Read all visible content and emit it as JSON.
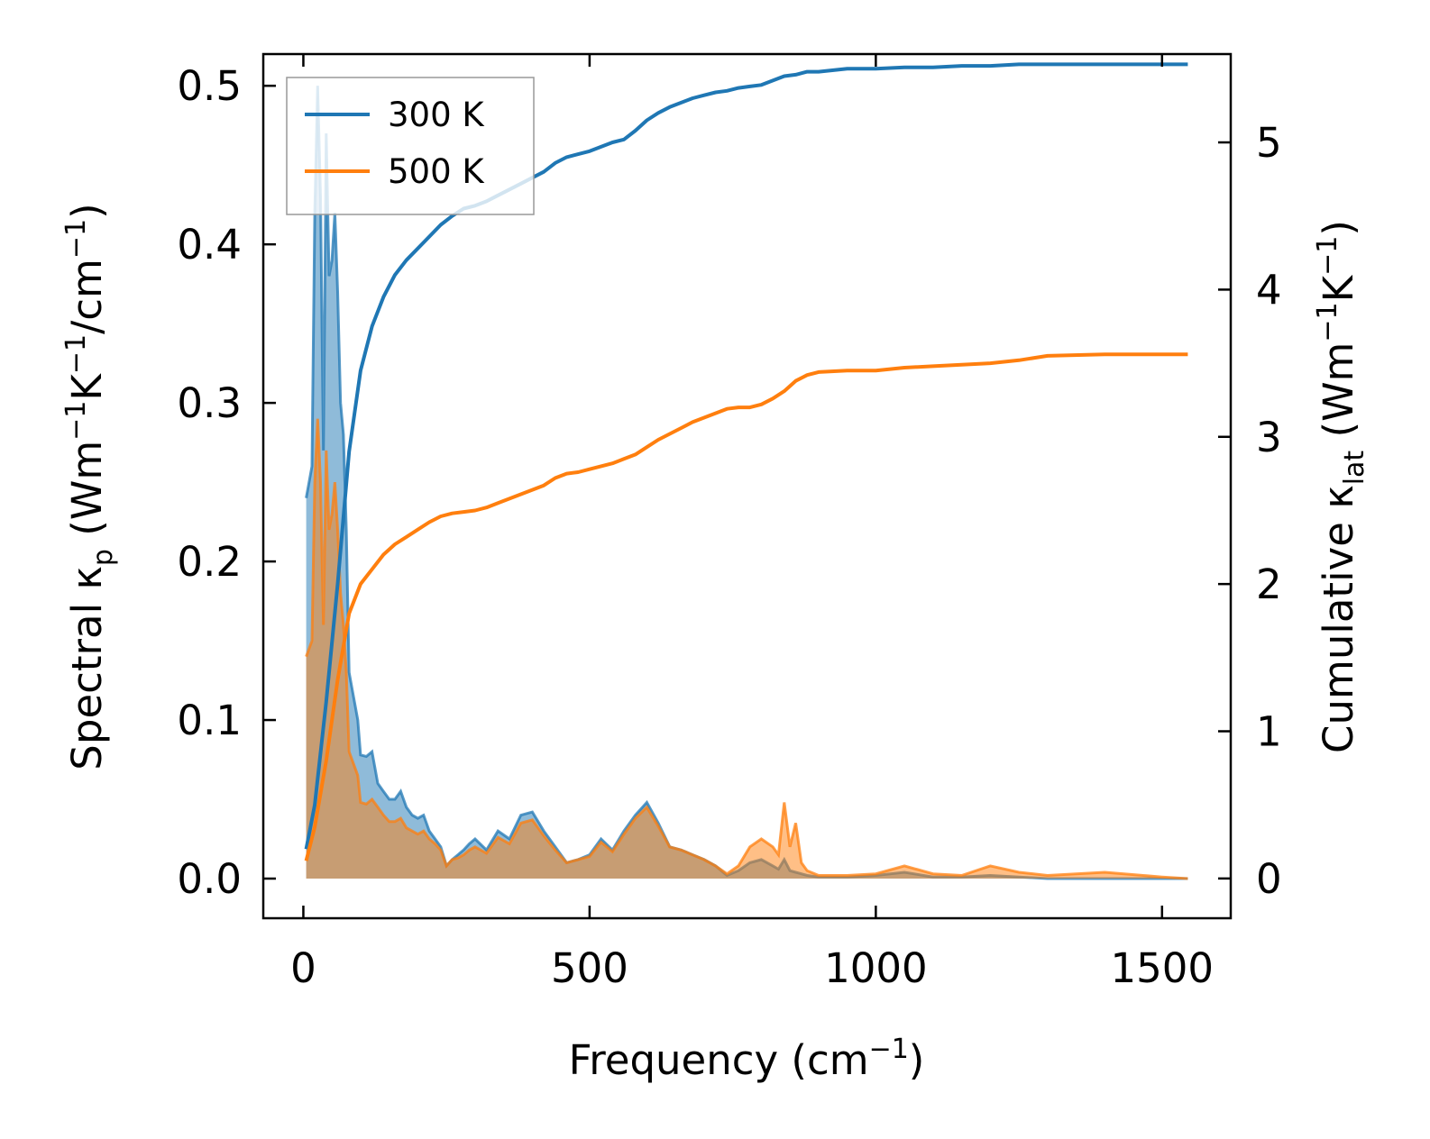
{
  "chart_data": {
    "type": "area",
    "xlabel": "Frequency (cm",
    "xlabel_sup": "−1",
    "xlabel_end": ")",
    "ylabel_left": {
      "pre": "Spectral κ",
      "sub": "p",
      "mid1": " (Wm",
      "sup1": "−1",
      "mid2": "K",
      "sup2": "−1",
      "mid3": "/cm",
      "sup3": "−1",
      "end": ")"
    },
    "ylabel_right": {
      "pre": "Cumulative κ",
      "sub": "lat",
      "mid1": " (Wm",
      "sup1": "−1",
      "mid2": "K",
      "sup2": "−1",
      "end": ")"
    },
    "xlim": [
      -70,
      1620
    ],
    "ylim_left": [
      -0.025,
      0.52
    ],
    "ylim_right": [
      -0.27,
      5.6
    ],
    "xticks": [
      0,
      500,
      1000,
      1500
    ],
    "yticks_left": [
      0.0,
      0.1,
      0.2,
      0.3,
      0.4,
      0.5
    ],
    "yticks_right": [
      0,
      1,
      2,
      3,
      4,
      5
    ],
    "legend_position": "upper-left",
    "colors": {
      "s300": "#1f77b4",
      "s500": "#ff7f0e"
    },
    "series": [
      {
        "name": "300 K",
        "spectral": {
          "x": [
            5,
            10,
            15,
            20,
            25,
            30,
            35,
            40,
            45,
            50,
            55,
            60,
            65,
            70,
            75,
            80,
            85,
            90,
            95,
            100,
            110,
            120,
            130,
            140,
            150,
            160,
            170,
            180,
            190,
            200,
            210,
            220,
            230,
            240,
            250,
            260,
            270,
            280,
            290,
            300,
            320,
            340,
            360,
            380,
            400,
            420,
            440,
            460,
            480,
            500,
            520,
            540,
            560,
            580,
            600,
            620,
            640,
            660,
            680,
            700,
            720,
            740,
            760,
            780,
            800,
            820,
            830,
            840,
            850,
            860,
            870,
            880,
            900,
            950,
            1000,
            1050,
            1100,
            1150,
            1200,
            1250,
            1300,
            1400,
            1500,
            1545
          ],
          "y": [
            0.24,
            0.25,
            0.26,
            0.42,
            0.5,
            0.43,
            0.27,
            0.47,
            0.38,
            0.39,
            0.42,
            0.37,
            0.3,
            0.28,
            0.22,
            0.13,
            0.12,
            0.11,
            0.1,
            0.078,
            0.077,
            0.08,
            0.06,
            0.055,
            0.05,
            0.05,
            0.055,
            0.045,
            0.04,
            0.038,
            0.04,
            0.03,
            0.025,
            0.02,
            0.008,
            0.012,
            0.015,
            0.018,
            0.022,
            0.025,
            0.018,
            0.03,
            0.025,
            0.04,
            0.042,
            0.03,
            0.02,
            0.01,
            0.012,
            0.015,
            0.025,
            0.018,
            0.03,
            0.04,
            0.048,
            0.035,
            0.02,
            0.018,
            0.015,
            0.012,
            0.008,
            0.002,
            0.005,
            0.01,
            0.012,
            0.008,
            0.006,
            0.012,
            0.005,
            0.004,
            0.003,
            0.002,
            0.001,
            0.001,
            0.002,
            0.004,
            0.001,
            0.001,
            0.002,
            0.001,
            0.0,
            0.0,
            0.0,
            0.0
          ]
        },
        "cumulative": {
          "x": [
            5,
            20,
            40,
            60,
            80,
            100,
            120,
            140,
            160,
            180,
            200,
            220,
            240,
            260,
            280,
            300,
            320,
            340,
            360,
            380,
            400,
            420,
            440,
            460,
            480,
            500,
            520,
            540,
            560,
            580,
            600,
            620,
            640,
            660,
            680,
            700,
            720,
            740,
            760,
            780,
            800,
            820,
            840,
            860,
            880,
            900,
            950,
            1000,
            1050,
            1100,
            1150,
            1200,
            1250,
            1300,
            1400,
            1500,
            1545
          ],
          "y": [
            0.2,
            0.5,
            1.2,
            2.0,
            2.9,
            3.45,
            3.75,
            3.95,
            4.1,
            4.2,
            4.28,
            4.36,
            4.44,
            4.5,
            4.55,
            4.57,
            4.6,
            4.64,
            4.68,
            4.72,
            4.76,
            4.8,
            4.86,
            4.9,
            4.92,
            4.94,
            4.97,
            5.0,
            5.02,
            5.08,
            5.15,
            5.2,
            5.24,
            5.27,
            5.3,
            5.32,
            5.34,
            5.35,
            5.37,
            5.38,
            5.39,
            5.42,
            5.45,
            5.46,
            5.48,
            5.48,
            5.5,
            5.5,
            5.51,
            5.51,
            5.52,
            5.52,
            5.53,
            5.53,
            5.53,
            5.53,
            5.53
          ]
        }
      },
      {
        "name": "500 K",
        "spectral": {
          "x": [
            5,
            10,
            15,
            20,
            25,
            30,
            35,
            40,
            45,
            50,
            55,
            60,
            65,
            70,
            75,
            80,
            85,
            90,
            95,
            100,
            110,
            120,
            130,
            140,
            150,
            160,
            170,
            180,
            190,
            200,
            210,
            220,
            230,
            240,
            250,
            260,
            270,
            280,
            290,
            300,
            320,
            340,
            360,
            380,
            400,
            420,
            440,
            460,
            480,
            500,
            520,
            540,
            560,
            580,
            600,
            620,
            640,
            660,
            680,
            700,
            720,
            740,
            760,
            780,
            800,
            820,
            830,
            840,
            850,
            860,
            870,
            880,
            900,
            950,
            1000,
            1050,
            1100,
            1150,
            1200,
            1250,
            1300,
            1400,
            1500,
            1545
          ],
          "y": [
            0.14,
            0.145,
            0.15,
            0.25,
            0.29,
            0.25,
            0.16,
            0.27,
            0.22,
            0.23,
            0.25,
            0.22,
            0.18,
            0.16,
            0.13,
            0.08,
            0.075,
            0.07,
            0.065,
            0.048,
            0.047,
            0.05,
            0.045,
            0.04,
            0.036,
            0.036,
            0.038,
            0.032,
            0.03,
            0.028,
            0.03,
            0.025,
            0.022,
            0.018,
            0.008,
            0.012,
            0.013,
            0.015,
            0.018,
            0.02,
            0.016,
            0.026,
            0.022,
            0.035,
            0.037,
            0.027,
            0.018,
            0.01,
            0.012,
            0.014,
            0.023,
            0.017,
            0.028,
            0.038,
            0.045,
            0.033,
            0.02,
            0.018,
            0.015,
            0.012,
            0.008,
            0.003,
            0.008,
            0.02,
            0.025,
            0.02,
            0.015,
            0.048,
            0.02,
            0.035,
            0.01,
            0.005,
            0.002,
            0.002,
            0.003,
            0.008,
            0.003,
            0.002,
            0.008,
            0.004,
            0.002,
            0.004,
            0.001,
            0.0
          ]
        },
        "cumulative": {
          "x": [
            5,
            20,
            40,
            60,
            80,
            100,
            120,
            140,
            160,
            180,
            200,
            220,
            240,
            260,
            280,
            300,
            320,
            340,
            360,
            380,
            400,
            420,
            440,
            460,
            480,
            500,
            520,
            540,
            560,
            580,
            600,
            620,
            640,
            660,
            680,
            700,
            720,
            740,
            760,
            780,
            800,
            820,
            840,
            860,
            880,
            900,
            950,
            1000,
            1050,
            1100,
            1150,
            1200,
            1250,
            1300,
            1400,
            1500,
            1545
          ],
          "y": [
            0.12,
            0.35,
            0.8,
            1.35,
            1.8,
            2.0,
            2.1,
            2.2,
            2.27,
            2.32,
            2.37,
            2.42,
            2.46,
            2.48,
            2.49,
            2.5,
            2.52,
            2.55,
            2.58,
            2.61,
            2.64,
            2.67,
            2.72,
            2.75,
            2.76,
            2.78,
            2.8,
            2.82,
            2.85,
            2.88,
            2.93,
            2.98,
            3.02,
            3.06,
            3.1,
            3.13,
            3.16,
            3.19,
            3.2,
            3.2,
            3.22,
            3.26,
            3.31,
            3.38,
            3.42,
            3.44,
            3.45,
            3.45,
            3.47,
            3.48,
            3.49,
            3.5,
            3.52,
            3.55,
            3.56,
            3.56,
            3.56
          ]
        }
      }
    ]
  }
}
